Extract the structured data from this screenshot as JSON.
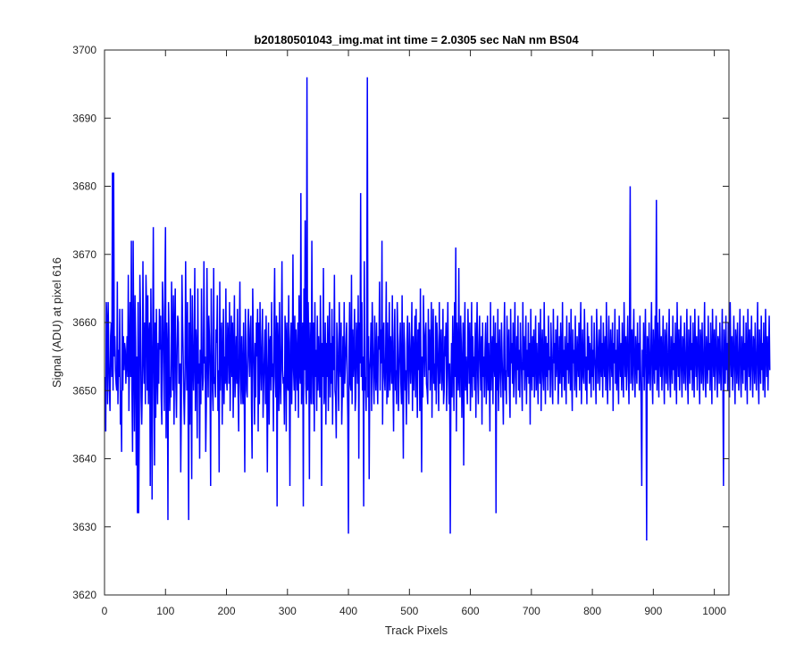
{
  "chart_data": {
    "type": "line",
    "title": "b20180501043_img.mat int time = 2.0305 sec  NaN nm BS04",
    "xlabel": "Track Pixels",
    "ylabel": "Signal (ADU) at pixel 616",
    "xlim": [
      0,
      1024
    ],
    "ylim": [
      3620,
      3700
    ],
    "xticks": [
      0,
      100,
      200,
      300,
      400,
      500,
      600,
      700,
      800,
      900,
      1000
    ],
    "yticks": [
      3620,
      3630,
      3640,
      3650,
      3660,
      3670,
      3680,
      3690,
      3700
    ],
    "grid": false,
    "series": [
      {
        "color": "#0000ff",
        "x_start": 1,
        "x_step": 1,
        "baseline": 3653,
        "values": [
          3652,
          3644,
          3663,
          3660,
          3648,
          3663,
          3655,
          3650,
          3647,
          3658,
          3660,
          3652,
          3682,
          3650,
          3646,
          3655,
          3658,
          3653,
          3651,
          3650,
          3666,
          3648,
          3656,
          3652,
          3662,
          3645,
          3650,
          3641,
          3662,
          3650,
          3658,
          3653,
          3657,
          3656,
          3651,
          3654,
          3658,
          3652,
          3667,
          3647,
          3655,
          3663,
          3652,
          3672,
          3650,
          3641,
          3660,
          3656,
          3644,
          3664,
          3657,
          3639,
          3655,
          3632,
          3663,
          3650,
          3645,
          3667,
          3661,
          3649,
          3645,
          3651,
          3669,
          3655,
          3651,
          3660,
          3648,
          3667,
          3662,
          3650,
          3664,
          3648,
          3658,
          3660,
          3636,
          3665,
          3654,
          3634,
          3657,
          3674,
          3653,
          3639,
          3660,
          3646,
          3662,
          3653,
          3648,
          3657,
          3651,
          3662,
          3656,
          3661,
          3649,
          3645,
          3666,
          3662,
          3654,
          3647,
          3665,
          3650,
          3643,
          3660,
          3656,
          3631,
          3663,
          3658,
          3647,
          3652,
          3649,
          3666,
          3657,
          3650,
          3664,
          3645,
          3659,
          3665,
          3651,
          3646,
          3656,
          3661,
          3660,
          3651,
          3652,
          3654,
          3638,
          3648,
          3667,
          3660,
          3655,
          3649,
          3645,
          3652,
          3669,
          3656,
          3650,
          3663,
          3648,
          3655,
          3660,
          3645,
          3665,
          3653,
          3637,
          3664,
          3656,
          3650,
          3655,
          3668,
          3647,
          3659,
          3656,
          3643,
          3665,
          3651,
          3654,
          3640,
          3656,
          3648,
          3665,
          3655,
          3650,
          3652,
          3669,
          3654,
          3655,
          3641,
          3648,
          3668,
          3656,
          3649,
          3661,
          3658,
          3652,
          3636,
          3665,
          3656,
          3650,
          3647,
          3668,
          3651,
          3652,
          3649,
          3659,
          3657,
          3664,
          3647,
          3653,
          3638,
          3666,
          3650,
          3657,
          3660,
          3645,
          3654,
          3662,
          3648,
          3655,
          3651,
          3665,
          3652,
          3650,
          3660,
          3658,
          3651,
          3663,
          3647,
          3655,
          3661,
          3652,
          3660,
          3646,
          3655,
          3664,
          3649,
          3653,
          3658,
          3651,
          3662,
          3650,
          3644,
          3657,
          3666,
          3652,
          3648,
          3658,
          3652,
          3648,
          3660,
          3651,
          3638,
          3662,
          3655,
          3650,
          3649,
          3658,
          3662,
          3655,
          3652,
          3659,
          3661,
          3648,
          3640,
          3665,
          3658,
          3653,
          3645,
          3657,
          3649,
          3660,
          3655,
          3662,
          3644,
          3660,
          3648,
          3663,
          3655,
          3650,
          3656,
          3662,
          3646,
          3651,
          3655,
          3659,
          3648,
          3661,
          3652,
          3638,
          3653,
          3660,
          3645,
          3657,
          3658,
          3650,
          3663,
          3652,
          3654,
          3644,
          3660,
          3668,
          3652,
          3649,
          3661,
          3633,
          3660,
          3656,
          3647,
          3663,
          3652,
          3648,
          3657,
          3669,
          3653,
          3651,
          3652,
          3645,
          3661,
          3658,
          3644,
          3660,
          3651,
          3650,
          3664,
          3652,
          3636,
          3657,
          3660,
          3648,
          3655,
          3670,
          3653,
          3650,
          3661,
          3647,
          3659,
          3655,
          3650,
          3660,
          3646,
          3664,
          3653,
          3651,
          3679,
          3648,
          3656,
          3660,
          3633,
          3665,
          3653,
          3675,
          3651,
          3648,
          3696,
          3650,
          3663,
          3655,
          3637,
          3660,
          3652,
          3648,
          3672,
          3655,
          3648,
          3660,
          3644,
          3663,
          3652,
          3656,
          3647,
          3661,
          3650,
          3658,
          3653,
          3649,
          3664,
          3656,
          3636,
          3657,
          3652,
          3668,
          3648,
          3650,
          3660,
          3645,
          3657,
          3652,
          3661,
          3647,
          3655,
          3663,
          3649,
          3657,
          3651,
          3662,
          3645,
          3658,
          3653,
          3667,
          3650,
          3649,
          3643,
          3660,
          3657,
          3652,
          3647,
          3663,
          3654,
          3652,
          3660,
          3645,
          3650,
          3658,
          3649,
          3663,
          3651,
          3654,
          3657,
          3660,
          3652,
          3646,
          3629,
          3656,
          3663,
          3651,
          3650,
          3667,
          3648,
          3659,
          3652,
          3655,
          3662,
          3647,
          3649,
          3660,
          3657,
          3651,
          3664,
          3640,
          3660,
          3654,
          3648,
          3652,
          3663,
          3650,
          3655,
          3651,
          3669,
          3650,
          3652,
          3647,
          3660,
          3662,
          3649,
          3658,
          3637,
          3653,
          3655,
          3660,
          3647,
          3663,
          3657,
          3652,
          3648,
          3661,
          3654,
          3650,
          3660,
          3653,
          3648,
          3658,
          3656,
          3666,
          3650,
          3659,
          3654,
          3672,
          3645,
          3657,
          3660,
          3652,
          3650,
          3655,
          3666,
          3648,
          3660,
          3649,
          3653,
          3663,
          3650,
          3658,
          3655,
          3651,
          3664,
          3652,
          3644,
          3657,
          3662,
          3650,
          3653,
          3648,
          3663,
          3658,
          3647,
          3652,
          3657,
          3660,
          3651,
          3648,
          3664,
          3652,
          3640,
          3660,
          3657,
          3650,
          3653,
          3645,
          3657,
          3661,
          3652,
          3648,
          3660,
          3656,
          3651,
          3655,
          3663,
          3647,
          3658,
          3650,
          3655,
          3661,
          3649,
          3662,
          3654,
          3646,
          3659,
          3653,
          3660,
          3647,
          3665,
          3652,
          3638,
          3655,
          3649,
          3664,
          3657,
          3652,
          3658,
          3660,
          3651,
          3650,
          3648,
          3662,
          3653,
          3659,
          3650,
          3655,
          3663,
          3646,
          3656,
          3662,
          3651,
          3654,
          3650,
          3661,
          3648,
          3660,
          3657,
          3652,
          3647,
          3663,
          3651,
          3655,
          3659,
          3650,
          3653,
          3662,
          3648,
          3650,
          3658,
          3655,
          3660,
          3647,
          3656,
          3663,
          3652,
          3648,
          3654,
          3662,
          3650,
          3657,
          3649,
          3661,
          3655,
          3647,
          3663,
          3652,
          3658,
          3644,
          3660,
          3655,
          3650,
          3668,
          3652,
          3649,
          3661,
          3657,
          3646,
          3653,
          3660,
          3639,
          3656,
          3663,
          3650,
          3655,
          3652,
          3648,
          3662,
          3657,
          3651,
          3660,
          3647,
          3654,
          3663,
          3649,
          3658,
          3652,
          3655,
          3650,
          3660,
          3646,
          3656,
          3663,
          3652,
          3648,
          3657,
          3661,
          3654,
          3650,
          3658,
          3645,
          3660,
          3652,
          3655,
          3649,
          3656,
          3660,
          3648,
          3653,
          3661,
          3650,
          3657,
          3652,
          3644,
          3663,
          3650,
          3655,
          3658,
          3648,
          3661,
          3654,
          3652,
          3660,
          3651,
          3657,
          3650,
          3662,
          3647,
          3655,
          3659,
          3652,
          3649,
          3660,
          3655,
          3651,
          3645,
          3657,
          3663,
          3650,
          3653,
          3648,
          3661,
          3655,
          3652,
          3659,
          3650,
          3646,
          3662,
          3654,
          3657,
          3651,
          3660,
          3649,
          3655,
          3663,
          3652,
          3648,
          3658,
          3653,
          3661,
          3650,
          3656,
          3649,
          3660,
          3655,
          3652,
          3647,
          3663,
          3653,
          3658,
          3650,
          3655,
          3661,
          3648,
          3656,
          3652,
          3660,
          3651,
          3657,
          3645,
          3662,
          3654,
          3650,
          3658,
          3652,
          3659,
          3649,
          3655,
          3661,
          3650,
          3657,
          3653,
          3648,
          3660,
          3654,
          3651,
          3662,
          3647,
          3656,
          3659,
          3652,
          3650,
          3663,
          3655,
          3648,
          3658,
          3652,
          3657,
          3650,
          3661,
          3653,
          3655,
          3649,
          3660,
          3656,
          3651,
          3648,
          3662,
          3654,
          3657,
          3650,
          3659,
          3652,
          3655,
          3661,
          3648,
          3653,
          3658,
          3651,
          3660,
          3655,
          3649,
          3663,
          3652,
          3656,
          3650,
          3658,
          3654,
          3648,
          3661,
          3653,
          3657,
          3651,
          3660,
          3655,
          3650,
          3662,
          3652,
          3647,
          3659,
          3654,
          3656,
          3650,
          3661,
          3653,
          3649,
          3658,
          3655,
          3652,
          3660,
          3650,
          3657,
          3663,
          3648,
          3654,
          3659,
          3652,
          3651,
          3662,
          3656,
          3650,
          3655,
          3648,
          3660,
          3653,
          3658,
          3651,
          3657,
          3654,
          3649,
          3661,
          3652,
          3656,
          3650,
          3660,
          3655,
          3653,
          3648,
          3662,
          3657,
          3651,
          3655,
          3659,
          3650,
          3654,
          3661,
          3652,
          3657,
          3649,
          3660,
          3655,
          3652,
          3658,
          3650,
          3663,
          3654,
          3648,
          3656,
          3661,
          3653,
          3650,
          3659,
          3655,
          3652,
          3660,
          3647,
          3657,
          3654,
          3662,
          3651,
          3656,
          3650,
          3659,
          3653,
          3648,
          3661,
          3655,
          3652,
          3657,
          3650,
          3660,
          3654,
          3649,
          3663,
          3656,
          3652,
          3658,
          3650,
          3655,
          3661,
          3653,
          3648,
          3660,
          3657,
          3651,
          3654,
          3659,
          3650,
          3656,
          3662,
          3652,
          3649,
          3658,
          3655,
          3651,
          3660,
          3653,
          3657,
          3650,
          3661,
          3654,
          3648,
          3659,
          3656,
          3652,
          3660,
          3650,
          3655,
          3662,
          3653,
          3649,
          3658,
          3657,
          3651,
          3660,
          3654,
          3650,
          3656,
          3663,
          3652,
          3648,
          3659,
          3655,
          3651,
          3661,
          3653,
          3657,
          3650,
          3660,
          3654,
          3649,
          3662,
          3656,
          3652,
          3658,
          3650,
          3655,
          3661,
          3653,
          3648,
          3659,
          3657,
          3651,
          3660,
          3654,
          3650,
          3656,
          3662,
          3652,
          3649,
          3658,
          3655,
          3651,
          3661,
          3653,
          3657,
          3650,
          3660,
          3654,
          3648,
          3663,
          3656,
          3652,
          3659,
          3650,
          3655,
          3661,
          3653,
          3649,
          3658,
          3657,
          3651,
          3660,
          3654,
          3650,
          3656,
          3662,
          3652,
          3648,
          3659,
          3655,
          3651,
          3661,
          3653,
          3657,
          3650,
          3660,
          3654,
          3649,
          3662,
          3656,
          3652,
          3658,
          3650,
          3655,
          3661,
          3653,
          3648,
          3659,
          3657,
          3651,
          3660,
          3654,
          3650,
          3656,
          3663,
          3652,
          3649,
          3658,
          3655,
          3651,
          3661,
          3653,
          3657,
          3650,
          3660,
          3654,
          3648,
          3662,
          3656,
          3652,
          3659,
          3650,
          3655,
          3661,
          3653,
          3649,
          3658,
          3657,
          3651,
          3660,
          3654,
          3650,
          3656,
          3662,
          3652,
          3648,
          3659,
          3655,
          3651,
          3661,
          3653,
          3657,
          3650,
          3660,
          3654,
          3649,
          3663,
          3656,
          3652,
          3658,
          3650,
          3655,
          3661,
          3653,
          3648,
          3659,
          3657,
          3651,
          3660,
          3654,
          3650,
          3656,
          3662,
          3652,
          3649,
          3658,
          3655,
          3651,
          3661,
          3653,
          3657,
          3650,
          3660,
          3654,
          3648,
          3662,
          3656,
          3652,
          3659,
          3650,
          3655,
          3661,
          3653,
          3649,
          3658,
          3657,
          3651,
          3660,
          3654,
          3650,
          3656,
          3663,
          3652,
          3648,
          3659,
          3655,
          3651,
          3661,
          3653,
          3657,
          3650,
          3660,
          3654,
          3649,
          3662,
          3656,
          3652,
          3658,
          3650,
          3655,
          3661,
          3653
        ]
      }
    ],
    "peaks": [
      {
        "x": 15,
        "y": 3682
      },
      {
        "x": 47,
        "y": 3672
      },
      {
        "x": 56,
        "y": 3632
      },
      {
        "x": 100,
        "y": 3674
      },
      {
        "x": 138,
        "y": 3631
      },
      {
        "x": 420,
        "y": 3679
      },
      {
        "x": 425,
        "y": 3633
      },
      {
        "x": 431,
        "y": 3696
      },
      {
        "x": 567,
        "y": 3629
      },
      {
        "x": 576,
        "y": 3671
      },
      {
        "x": 642,
        "y": 3632
      },
      {
        "x": 862,
        "y": 3680
      },
      {
        "x": 881,
        "y": 3636
      },
      {
        "x": 889,
        "y": 3628
      },
      {
        "x": 905,
        "y": 3678
      },
      {
        "x": 1015,
        "y": 3636
      }
    ]
  }
}
